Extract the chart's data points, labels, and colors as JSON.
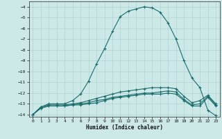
{
  "xlabel": "Humidex (Indice chaleur)",
  "background_color": "#cce9e8",
  "grid_color": "#aed4d3",
  "line_color": "#1a6b6b",
  "xlim": [
    -0.5,
    23.5
  ],
  "ylim": [
    -14.2,
    -3.5
  ],
  "xticks": [
    0,
    1,
    2,
    3,
    4,
    5,
    6,
    7,
    8,
    9,
    10,
    11,
    12,
    13,
    14,
    15,
    16,
    17,
    18,
    19,
    20,
    21,
    22,
    23
  ],
  "yticks": [
    -14,
    -13,
    -12,
    -11,
    -10,
    -9,
    -8,
    -7,
    -6,
    -5,
    -4
  ],
  "line1_x": [
    0,
    1,
    2,
    3,
    4,
    5,
    6,
    7,
    8,
    9,
    10,
    11,
    12,
    13,
    14,
    15,
    16,
    17,
    18,
    19,
    20,
    21,
    22,
    23
  ],
  "line1_y": [
    -14.0,
    -13.3,
    -13.0,
    -13.0,
    -13.0,
    -12.7,
    -12.1,
    -10.9,
    -9.3,
    -7.9,
    -6.3,
    -4.9,
    -4.4,
    -4.2,
    -4.0,
    -4.1,
    -4.5,
    -5.5,
    -7.0,
    -9.0,
    -10.6,
    -11.5,
    -13.6,
    -14.1
  ],
  "line2_x": [
    0,
    1,
    2,
    3,
    4,
    5,
    6,
    7,
    8,
    9,
    10,
    11,
    12,
    13,
    14,
    15,
    16,
    17,
    18,
    19,
    20,
    21,
    22,
    23
  ],
  "line2_y": [
    -14.0,
    -13.3,
    -13.1,
    -13.1,
    -13.1,
    -13.0,
    -12.9,
    -12.7,
    -12.5,
    -12.3,
    -12.1,
    -11.9,
    -11.8,
    -11.7,
    -11.6,
    -11.5,
    -11.5,
    -11.5,
    -11.6,
    -12.3,
    -12.9,
    -12.7,
    -12.2,
    -13.0
  ],
  "line3_x": [
    0,
    1,
    2,
    3,
    4,
    5,
    6,
    7,
    8,
    9,
    10,
    11,
    12,
    13,
    14,
    15,
    16,
    17,
    18,
    19,
    20,
    21,
    22,
    23
  ],
  "line3_y": [
    -14.0,
    -13.4,
    -13.2,
    -13.2,
    -13.2,
    -13.1,
    -13.0,
    -12.9,
    -12.7,
    -12.6,
    -12.4,
    -12.3,
    -12.2,
    -12.1,
    -12.0,
    -12.0,
    -11.9,
    -11.8,
    -11.9,
    -12.6,
    -13.1,
    -13.0,
    -12.3,
    -13.1
  ],
  "line4_x": [
    0,
    1,
    2,
    3,
    4,
    5,
    6,
    7,
    8,
    9,
    10,
    11,
    12,
    13,
    14,
    15,
    16,
    17,
    18,
    19,
    20,
    21,
    22,
    23
  ],
  "line4_y": [
    -14.0,
    -13.4,
    -13.2,
    -13.2,
    -13.2,
    -13.1,
    -13.1,
    -13.0,
    -12.9,
    -12.7,
    -12.5,
    -12.4,
    -12.3,
    -12.2,
    -12.1,
    -12.1,
    -12.1,
    -12.0,
    -12.1,
    -12.7,
    -13.2,
    -13.2,
    -12.4,
    -13.2
  ]
}
